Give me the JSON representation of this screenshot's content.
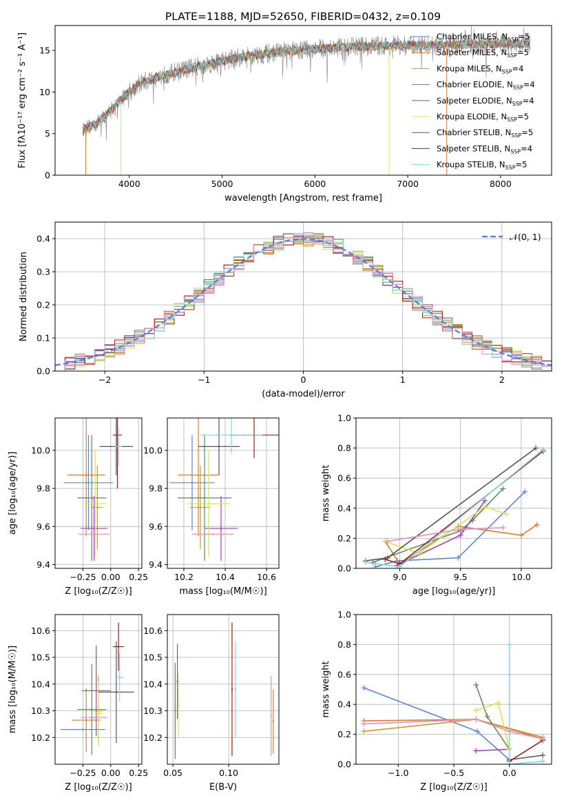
{
  "figure_title": "PLATE=1188, MJD=52650, FIBERID=0432, z=0.109",
  "colors": {
    "Chabrier MILES": "#5b84d6",
    "Salpeter MILES": "#e07a2a",
    "Kroupa MILES": "#c79a2a",
    "Chabrier ELODIE": "#5a8a5a",
    "Salpeter ELODIE": "#a33bbf",
    "Kroupa ELODIE": "#d9e44a",
    "Chabrier STELIB": "#555555",
    "Salpeter STELIB": "#a31b1b",
    "Kroupa STELIB": "#7fd8e0",
    "gaussian": "#5b84d6",
    "data": "#808080"
  },
  "chart_data": [
    {
      "id": "spectrum",
      "type": "line",
      "xlabel": "wavelength [Angstrom, rest frame]",
      "ylabel": "Flux [fλ10⁻¹⁷ erg cm⁻² s⁻¹ A⁻¹]",
      "xlim": [
        3200,
        8550
      ],
      "ylim": [
        0,
        18
      ],
      "xticks": [
        4000,
        5000,
        6000,
        7000,
        8000
      ],
      "yticks": [
        0,
        5,
        10,
        15
      ],
      "grid": false,
      "legend_position": "right",
      "legend": [
        {
          "name": "Chabrier MILES",
          "label": "Chabrier MILES, N",
          "sub": "SSP",
          "suffix": "=5"
        },
        {
          "name": "Salpeter MILES",
          "label": "Salpeter MILES, N",
          "sub": "SSP",
          "suffix": "=5"
        },
        {
          "name": "Kroupa MILES",
          "label": "Kroupa MILES, N",
          "sub": "SSP",
          "suffix": "=4"
        },
        {
          "name": "Chabrier ELODIE",
          "label": "Chabrier ELODIE, N",
          "sub": "SSP",
          "suffix": "=4"
        },
        {
          "name": "Salpeter ELODIE",
          "label": "Salpeter ELODIE, N",
          "sub": "SSP",
          "suffix": "=4"
        },
        {
          "name": "Kroupa ELODIE",
          "label": "Kroupa ELODIE, N",
          "sub": "SSP",
          "suffix": "=5"
        },
        {
          "name": "Chabrier STELIB",
          "label": "Chabrier STELIB, N",
          "sub": "SSP",
          "suffix": "=5"
        },
        {
          "name": "Salpeter STELIB",
          "label": "Salpeter STELIB, N",
          "sub": "SSP",
          "suffix": "=4"
        },
        {
          "name": "Kroupa STELIB",
          "label": "Kroupa STELIB, N",
          "sub": "SSP",
          "suffix": "=5"
        }
      ],
      "continuum": {
        "x": [
          3500,
          3650,
          3800,
          3950,
          4100,
          4300,
          4600,
          4900,
          5200,
          5600,
          6000,
          6500,
          7000,
          7500,
          8000,
          8300
        ],
        "y": [
          5.5,
          6.2,
          7.8,
          9.5,
          11.0,
          11.8,
          12.7,
          13.5,
          14.2,
          14.8,
          15.2,
          15.5,
          15.6,
          15.7,
          15.8,
          15.8
        ]
      }
    },
    {
      "id": "residuals",
      "type": "histogram",
      "xlabel": "(data-model)/error",
      "ylabel": "Normed distribution",
      "xlim": [
        -2.5,
        2.5
      ],
      "ylim": [
        0,
        0.45
      ],
      "xticks": [
        -2,
        -1,
        0,
        1,
        2
      ],
      "yticks": [
        0.0,
        0.1,
        0.2,
        0.3,
        0.4
      ],
      "grid": true,
      "legend_position": "top-right",
      "gaussian_label": "𝒩(0, 1)",
      "bin_width": 0.1
    },
    {
      "id": "age_vs_Z",
      "type": "scatter",
      "xlabel": "Z [log₁₀(Z/Z☉)]",
      "ylabel": "age  [log₁₀(age/yr)]",
      "xlim": [
        -0.5,
        0.28
      ],
      "ylim": [
        9.38,
        10.17
      ],
      "xticks": [
        -0.25,
        0.0,
        0.25
      ],
      "yticks": [
        9.4,
        9.6,
        9.8,
        10.0
      ],
      "grid": true,
      "points": [
        {
          "model": "Chabrier MILES",
          "x": -0.2,
          "xerr": 0.22,
          "y": 9.83,
          "yerr": 0.25
        },
        {
          "model": "Salpeter MILES",
          "x": -0.22,
          "xerr": 0.17,
          "y": 9.87,
          "yerr": 0.32
        },
        {
          "model": "Kroupa MILES",
          "x": -0.12,
          "xerr": 0.05,
          "y": 9.7,
          "yerr": 0.22
        },
        {
          "model": "Chabrier ELODIE",
          "x": -0.17,
          "xerr": 0.13,
          "y": 9.75,
          "yerr": 0.33
        },
        {
          "model": "Salpeter ELODIE",
          "x": -0.15,
          "xerr": 0.12,
          "y": 9.59,
          "yerr": 0.17
        },
        {
          "model": "Kroupa ELODIE",
          "x": -0.14,
          "xerr": 0.1,
          "y": 9.72,
          "yerr": 0.28
        },
        {
          "model": "Chabrier STELIB",
          "x": 0.05,
          "xerr": 0.15,
          "y": 10.02,
          "yerr": 0.15
        },
        {
          "model": "Salpeter STELIB",
          "x": 0.06,
          "xerr": 0.04,
          "y": 10.08,
          "yerr": 0.28
        },
        {
          "model": "Kroupa STELIB",
          "x": 0.07,
          "xerr": 0.03,
          "y": 10.02,
          "yerr": 0.1
        },
        {
          "model": "pink",
          "x": -0.15,
          "xerr": 0.14,
          "y": 9.56,
          "yerr": 0.0
        }
      ]
    },
    {
      "id": "age_vs_mass",
      "type": "scatter",
      "xlabel": "mass [log₁₀(M/M☉)]",
      "ylabel": "",
      "xlim": [
        10.12,
        10.66
      ],
      "ylim": [
        9.38,
        10.17
      ],
      "xticks": [
        10.2,
        10.4,
        10.6
      ],
      "yticks": [
        9.4,
        9.6,
        9.8,
        10.0
      ],
      "grid": true,
      "points": [
        {
          "model": "Chabrier MILES",
          "x": 10.24,
          "xerr": 0.11,
          "y": 9.83,
          "yerr": 0.25
        },
        {
          "model": "Salpeter MILES",
          "x": 10.27,
          "xerr": 0.1,
          "y": 9.87,
          "yerr": 0.32
        },
        {
          "model": "Kroupa MILES",
          "x": 10.28,
          "xerr": 0.05,
          "y": 9.7,
          "yerr": 0.22
        },
        {
          "model": "Chabrier ELODIE",
          "x": 10.3,
          "xerr": 0.13,
          "y": 9.75,
          "yerr": 0.33
        },
        {
          "model": "Salpeter ELODIE",
          "x": 10.38,
          "xerr": 0.08,
          "y": 9.59,
          "yerr": 0.17
        },
        {
          "model": "Kroupa ELODIE",
          "x": 10.32,
          "xerr": 0.1,
          "y": 9.72,
          "yerr": 0.28
        },
        {
          "model": "Chabrier STELIB",
          "x": 10.37,
          "xerr": 0.1,
          "y": 10.02,
          "yerr": 0.15
        },
        {
          "model": "Salpeter STELIB",
          "x": 10.54,
          "xerr": 0.12,
          "y": 10.08,
          "yerr": 0.12
        },
        {
          "model": "Kroupa STELIB",
          "x": 10.43,
          "xerr": 0.15,
          "y": 10.08,
          "yerr": 0.1
        },
        {
          "model": "pink",
          "x": 10.34,
          "xerr": 0.1,
          "y": 9.56,
          "yerr": 0.0
        }
      ]
    },
    {
      "id": "weight_vs_age",
      "type": "line",
      "xlabel": "age  [log₁₀(age/yr)]",
      "ylabel": "mass weight",
      "xlim": [
        8.64,
        10.25
      ],
      "ylim": [
        0,
        1.0
      ],
      "xticks": [
        9.0,
        9.5,
        10.0
      ],
      "yticks": [
        0.0,
        0.2,
        0.4,
        0.6,
        0.8,
        1.0
      ],
      "grid": true,
      "series": [
        {
          "model": "Chabrier MILES",
          "x": [
            8.8,
            8.98,
            9.48,
            10.03
          ],
          "y": [
            0.01,
            0.05,
            0.07,
            0.51
          ]
        },
        {
          "model": "Salpeter MILES",
          "x": [
            8.88,
            9.0,
            9.48,
            10.0,
            10.13
          ],
          "y": [
            0.18,
            0.03,
            0.28,
            0.22,
            0.29
          ]
        },
        {
          "model": "Chabrier ELODIE",
          "x": [
            8.78,
            9.5,
            9.6,
            9.85
          ],
          "y": [
            0.04,
            0.25,
            0.32,
            0.53
          ]
        },
        {
          "model": "Salpeter ELODIE",
          "x": [
            8.98,
            9.0,
            9.5,
            9.7
          ],
          "y": [
            0.02,
            0.03,
            0.22,
            0.45
          ]
        },
        {
          "model": "Kroupa ELODIE",
          "x": [
            8.88,
            9.16,
            9.7,
            9.88
          ],
          "y": [
            0.18,
            0.1,
            0.41,
            0.36
          ]
        },
        {
          "model": "Chabrier STELIB",
          "x": [
            8.72,
            8.9,
            10.12
          ],
          "y": [
            0.05,
            0.07,
            0.8
          ]
        },
        {
          "model": "Salpeter STELIB",
          "x": [
            8.88,
            9.0,
            10.18
          ],
          "y": [
            0.06,
            0.03,
            0.78
          ]
        },
        {
          "model": "Kroupa STELIB",
          "x": [
            8.72,
            9.0,
            10.18
          ],
          "y": [
            0.04,
            0.01,
            0.79
          ]
        },
        {
          "model": "pink",
          "x": [
            8.9,
            9.5,
            9.85
          ],
          "y": [
            0.18,
            0.26,
            0.27
          ]
        }
      ]
    },
    {
      "id": "mass_vs_Z",
      "type": "scatter",
      "xlabel": "Z [log₁₀(Z/Z☉)]",
      "ylabel": "mass [log₁₀(M/M☉)]",
      "xlim": [
        -0.5,
        0.28
      ],
      "ylim": [
        10.1,
        10.66
      ],
      "xticks": [
        -0.25,
        0.0,
        0.25
      ],
      "yticks": [
        10.2,
        10.3,
        10.4,
        10.5,
        10.6
      ],
      "grid": true,
      "points": [
        {
          "model": "Chabrier MILES",
          "x": -0.25,
          "xerr": 0.2,
          "y": 10.23,
          "yerr": 0.0
        },
        {
          "model": "Salpeter MILES",
          "x": -0.22,
          "xerr": 0.13,
          "y": 10.265,
          "yerr": 0.12
        },
        {
          "model": "Kroupa MILES",
          "x": -0.11,
          "xerr": 0.04,
          "y": 10.3,
          "yerr": 0.13
        },
        {
          "model": "Chabrier ELODIE",
          "x": -0.17,
          "xerr": 0.13,
          "y": 10.305,
          "yerr": 0.17
        },
        {
          "model": "Salpeter ELODIE",
          "x": -0.13,
          "xerr": 0.13,
          "y": 10.375,
          "yerr": 0.17
        },
        {
          "model": "Kroupa ELODIE",
          "x": -0.11,
          "xerr": 0.04,
          "y": 10.29,
          "yerr": 0.12
        },
        {
          "model": "Chabrier STELIB",
          "x": 0.05,
          "xerr": 0.16,
          "y": 10.37,
          "yerr": 0.19
        },
        {
          "model": "Salpeter STELIB",
          "x": 0.07,
          "xerr": 0.05,
          "y": 10.54,
          "yerr": 0.09
        },
        {
          "model": "Kroupa STELIB",
          "x": 0.08,
          "xerr": 0.04,
          "y": 10.425,
          "yerr": 0.09
        },
        {
          "model": "pink",
          "x": -0.15,
          "xerr": 0.12,
          "y": 10.275,
          "yerr": 0.0
        }
      ]
    },
    {
      "id": "mass_vs_EBV",
      "type": "scatter",
      "xlabel": "E(B-V)",
      "ylabel": "",
      "xlim": [
        0.045,
        0.145
      ],
      "ylim": [
        10.1,
        10.66
      ],
      "xticks": [
        0.05,
        0.1
      ],
      "yticks": [
        10.2,
        10.3,
        10.4,
        10.5,
        10.6
      ],
      "grid": true,
      "points": [
        {
          "model": "Kroupa ELODIE",
          "x": 0.052,
          "y": 10.31,
          "yerr": 0.13
        },
        {
          "model": "Chabrier ELODIE",
          "x": 0.052,
          "y": 10.3,
          "yerr": 0.18
        },
        {
          "model": "Salpeter ELODIE",
          "x": 0.054,
          "y": 10.41,
          "yerr": 0.14
        },
        {
          "model": "Kroupa ELODIE",
          "x": 0.055,
          "y": 10.32,
          "yerr": 0.12
        },
        {
          "model": "Salpeter STELIB",
          "x": 0.103,
          "y": 10.38,
          "yerr": 0.25
        },
        {
          "model": "Kroupa STELIB",
          "x": 0.106,
          "y": 10.38,
          "yerr": 0.18
        },
        {
          "model": "pink",
          "x": 0.138,
          "y": 10.28,
          "yerr": 0.15
        },
        {
          "model": "Salpeter MILES",
          "x": 0.14,
          "y": 10.26,
          "yerr": 0.12
        }
      ]
    },
    {
      "id": "weight_vs_Z",
      "type": "line",
      "xlabel": "Z [log₁₀(Z/Z☉)]",
      "ylabel": "mass weight",
      "xlim": [
        -1.38,
        0.38
      ],
      "ylim": [
        0,
        1.0
      ],
      "xticks": [
        -1.0,
        -0.5,
        0.0
      ],
      "yticks": [
        0.0,
        0.2,
        0.4,
        0.6,
        0.8,
        1.0
      ],
      "grid": true,
      "series": [
        {
          "model": "Chabrier MILES",
          "x": [
            -1.31,
            -0.29,
            0.0
          ],
          "y": [
            0.51,
            0.22,
            0.03
          ]
        },
        {
          "model": "Salpeter MILES",
          "x": [
            -1.31,
            -0.3,
            0.3
          ],
          "y": [
            0.29,
            0.3,
            0.17
          ]
        },
        {
          "model": "Kroupa MILES",
          "x": [
            -1.31,
            -0.3,
            0.3
          ],
          "y": [
            0.22,
            0.3,
            0.18
          ]
        },
        {
          "model": "Chabrier ELODIE",
          "x": [
            -0.3,
            -0.2,
            0.0
          ],
          "y": [
            0.53,
            0.32,
            0.1
          ]
        },
        {
          "model": "Salpeter ELODIE",
          "x": [
            -0.3,
            0.0
          ],
          "y": [
            0.09,
            0.1
          ]
        },
        {
          "model": "Kroupa ELODIE",
          "x": [
            -0.3,
            -0.1,
            0.0
          ],
          "y": [
            0.36,
            0.41,
            0.1
          ]
        },
        {
          "model": "Chabrier STELIB",
          "x": [
            0.0,
            0.3
          ],
          "y": [
            0.03,
            0.06
          ]
        },
        {
          "model": "Salpeter STELIB",
          "x": [
            0.0,
            0.3
          ],
          "y": [
            0.02,
            0.16
          ]
        },
        {
          "model": "Kroupa STELIB",
          "x": [
            0.0,
            0.0,
            0.3
          ],
          "y": [
            0.8,
            0.0,
            0.02
          ]
        },
        {
          "model": "pink",
          "x": [
            -1.31,
            -0.3,
            0.0,
            0.3
          ],
          "y": [
            0.27,
            0.3,
            0.22,
            0.17
          ]
        }
      ]
    }
  ]
}
